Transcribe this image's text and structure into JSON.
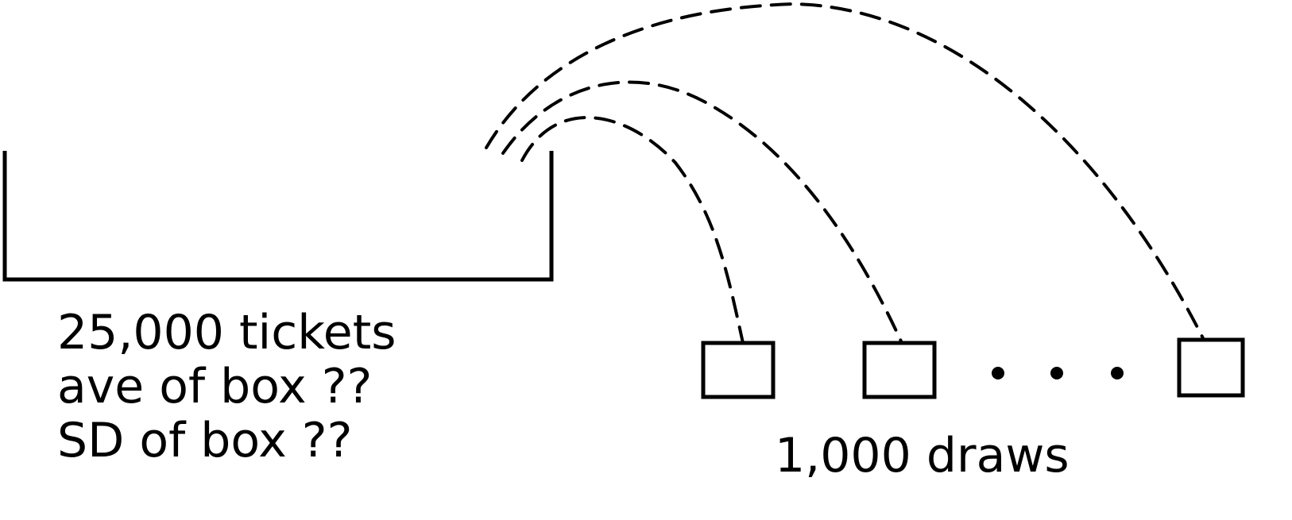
{
  "box": {
    "tickets_label": "25,000 tickets",
    "average_label": "ave of box ??",
    "sd_label": "SD of box ??"
  },
  "draws": {
    "label": "1,000 draws",
    "ellipsis": "• • •"
  },
  "colors": {
    "ink": "#000000",
    "background": "#ffffff"
  }
}
